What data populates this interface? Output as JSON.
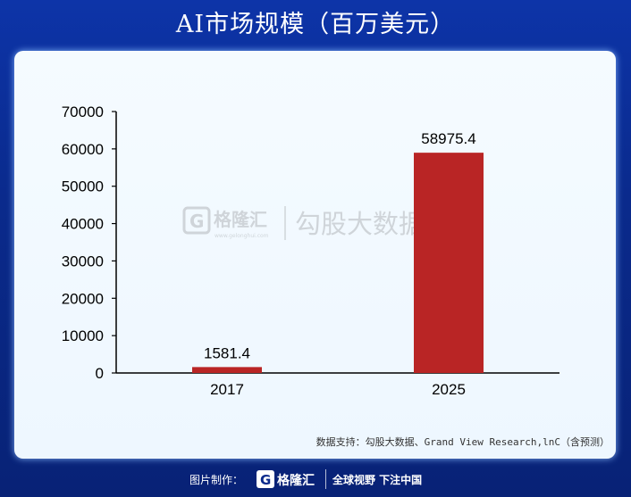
{
  "title": "AI市场规模（百万美元）",
  "watermark": {
    "brand": "格隆汇",
    "domain": "www.gelonghui.com",
    "text": "勾股大数据"
  },
  "source": "数据支持：勾股大数据、Grand View Research,lnC（含预测）",
  "footer": {
    "prefix": "图片制作：",
    "brand": "格隆汇",
    "slogan": "全球视野 下注中国"
  },
  "colors": {
    "bar": "#b92525",
    "background": "#0a2a8c"
  },
  "chart_data": {
    "type": "bar",
    "categories": [
      "2017",
      "2025"
    ],
    "values": [
      1581.4,
      58975.4
    ],
    "data_labels": [
      "1581.4",
      "58975.4"
    ],
    "title": "AI市场规模（百万美元）",
    "xlabel": "",
    "ylabel": "",
    "ylim": [
      0,
      70000
    ],
    "yticks": [
      "0",
      "10000",
      "20000",
      "30000",
      "40000",
      "50000",
      "60000",
      "70000"
    ],
    "grid": false,
    "legend": "none"
  }
}
